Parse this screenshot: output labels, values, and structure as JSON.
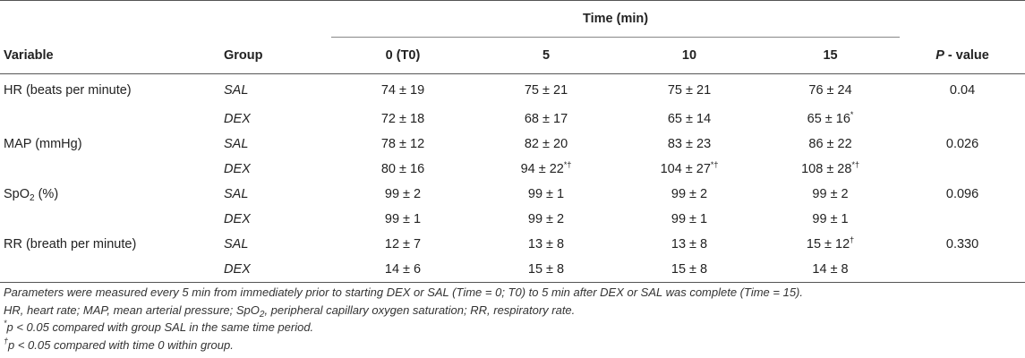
{
  "table": {
    "time_header": "Time (min)",
    "columns": {
      "variable": "Variable",
      "group": "Group",
      "t0": "0 (T0)",
      "t5": "5",
      "t10": "10",
      "t15": "15",
      "p_letter": "P",
      "p_suffix": " - value"
    },
    "rows": [
      {
        "variable": "HR (beats per minute)",
        "group": "SAL",
        "t0": "74 ± 19",
        "t5": "75 ± 21",
        "t10": "75 ± 21",
        "t15": "76 ± 24",
        "p": "0.04"
      },
      {
        "variable": "",
        "group": "DEX",
        "t0": "72 ± 18",
        "t5": "68 ± 17",
        "t10": "65 ± 14",
        "t15": "65 ± 16",
        "t15_sup": "*",
        "p": ""
      },
      {
        "variable": "MAP (mmHg)",
        "group": "SAL",
        "t0": "78 ± 12",
        "t5": "82 ± 20",
        "t10": "83 ± 23",
        "t15": "86 ± 22",
        "p": "0.026"
      },
      {
        "variable": "",
        "group": "DEX",
        "t0": "80 ± 16",
        "t5": "94 ± 22",
        "t5_sup": "*†",
        "t10": "104 ± 27",
        "t10_sup": "*†",
        "t15": "108 ± 28",
        "t15_sup": "*†",
        "p": ""
      },
      {
        "variable_pre": "SpO",
        "variable_sub": "2",
        "variable_post": " (%)",
        "group": "SAL",
        "t0": "99 ± 2",
        "t5": "99 ± 1",
        "t10": "99 ± 2",
        "t15": "99 ± 2",
        "p": "0.096"
      },
      {
        "variable": "",
        "group": "DEX",
        "t0": "99 ± 1",
        "t5": "99 ± 2",
        "t10": "99 ± 1",
        "t15": "99 ± 1",
        "p": ""
      },
      {
        "variable": "RR (breath per minute)",
        "group": "SAL",
        "t0": "12 ± 7",
        "t5": "13 ± 8",
        "t10": "13 ± 8",
        "t15": "15 ± 12",
        "t15_sup": "†",
        "p": "0.330"
      },
      {
        "variable": "",
        "group": "DEX",
        "t0": "14 ± 6",
        "t5": "15 ± 8",
        "t10": "15 ± 8",
        "t15": "14 ± 8",
        "p": ""
      }
    ]
  },
  "footnotes": {
    "line1": "Parameters were measured every 5 min from immediately prior to starting DEX or SAL (Time = 0; T0) to 5 min after DEX or SAL was complete (Time = 15).",
    "line2_pre": "HR, heart rate; MAP, mean arterial pressure; SpO",
    "line2_sub": "2",
    "line2_post": ", peripheral capillary oxygen saturation; RR, respiratory rate.",
    "line3_sym": "*",
    "line3": "p < 0.05 compared with group SAL in the same time period.",
    "line4_sym": "†",
    "line4": "p < 0.05 compared with time 0 within group."
  }
}
